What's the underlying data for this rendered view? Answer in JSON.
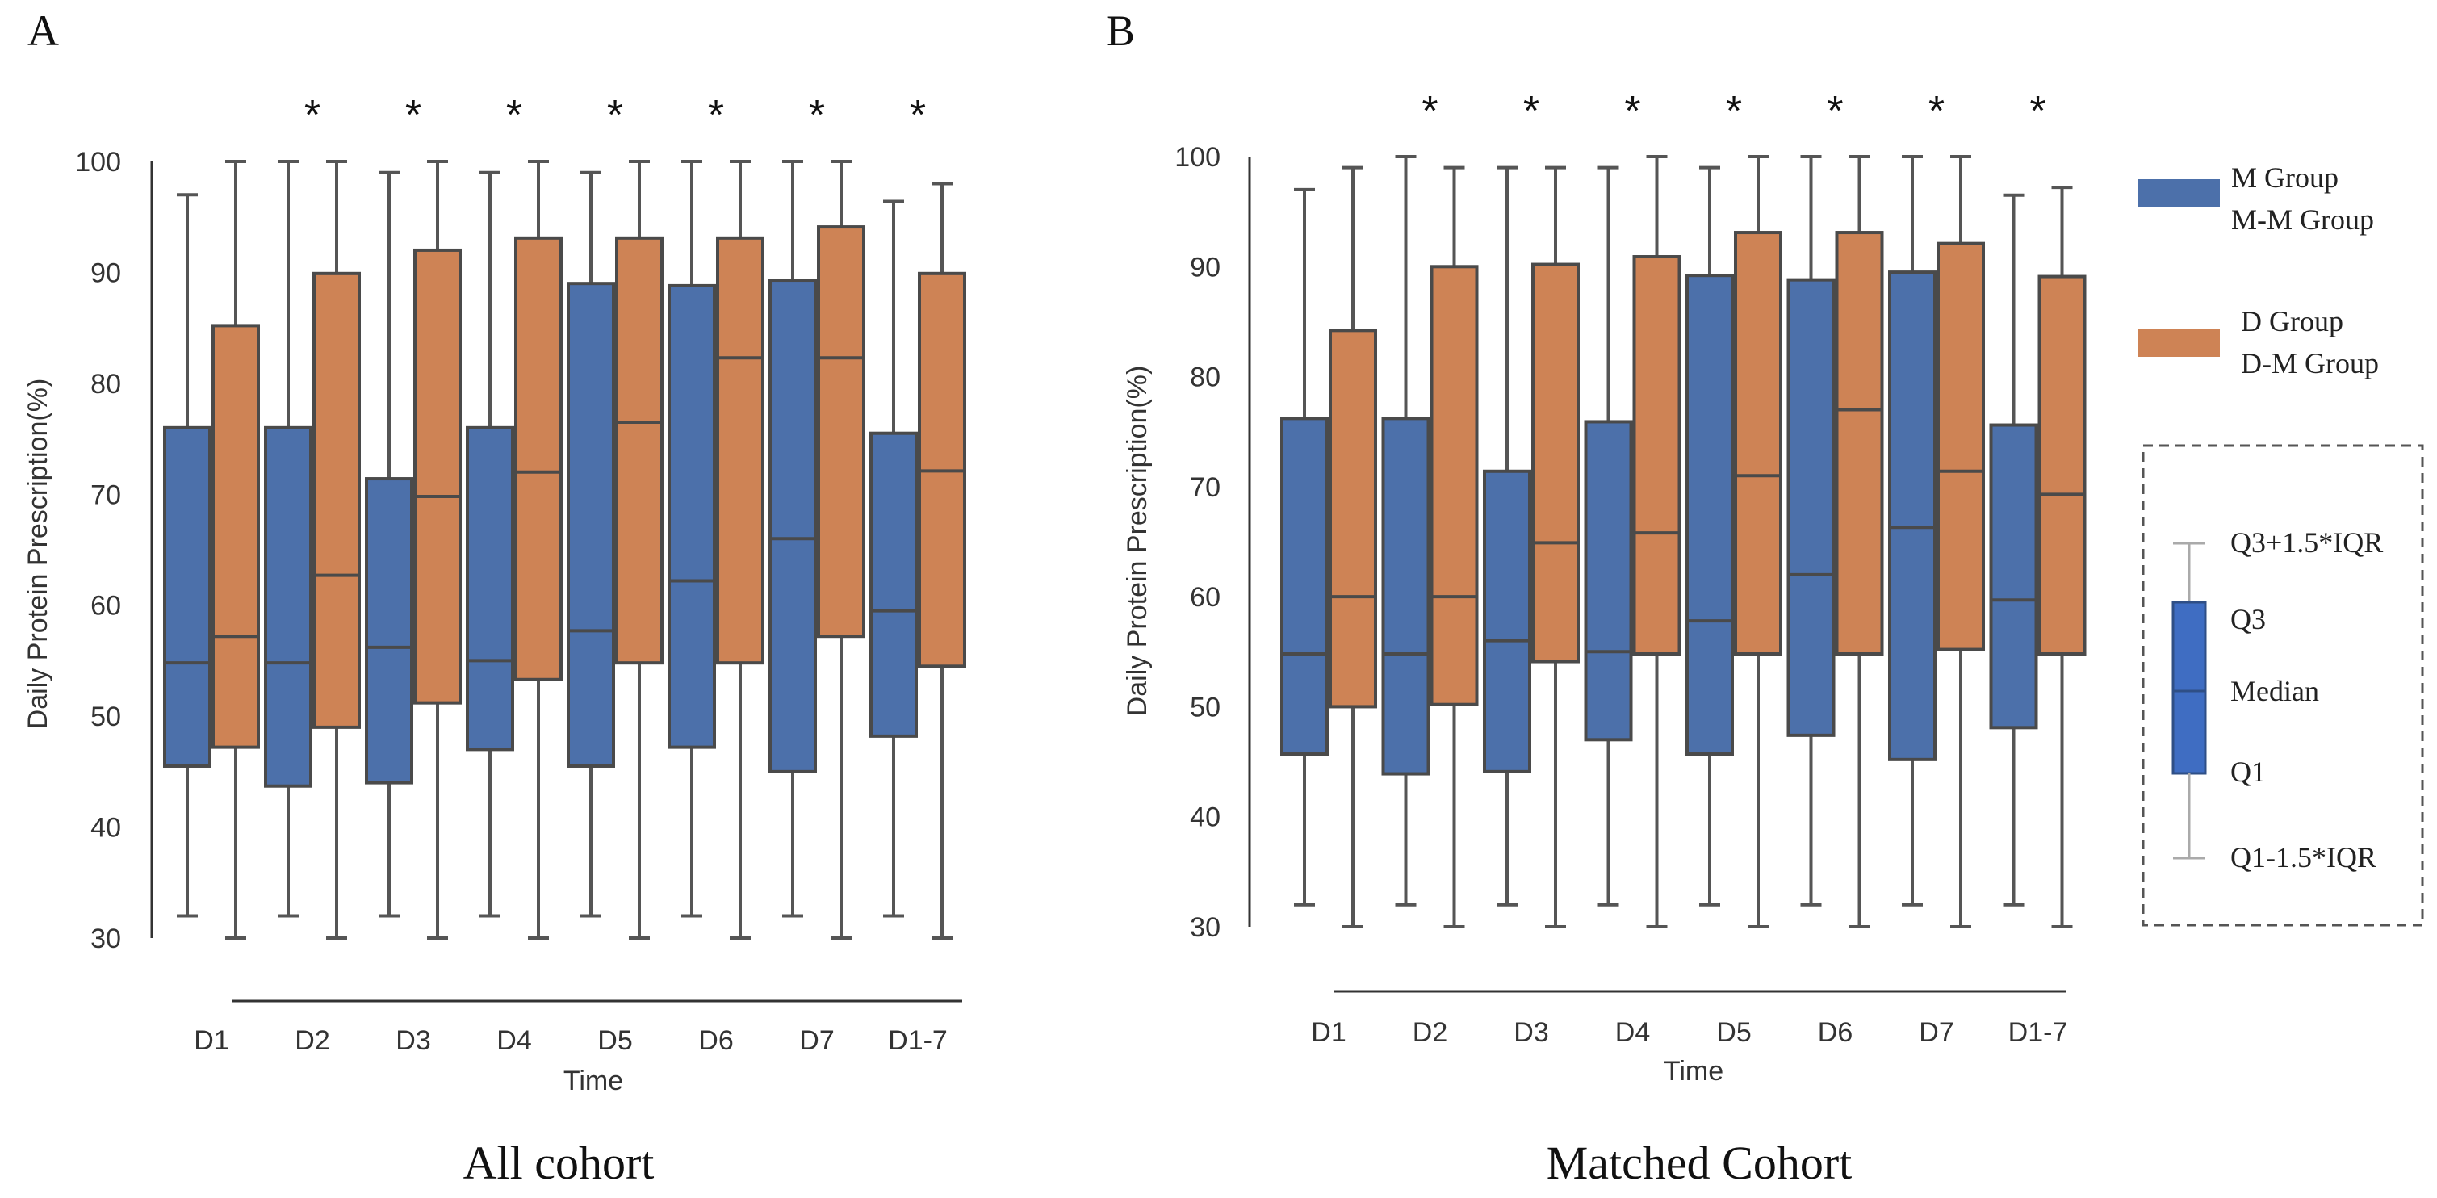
{
  "colors": {
    "m": "#4C70AA",
    "d": "#CE8355",
    "legend_box": "#3F6DC2"
  },
  "legend": {
    "m_labels": [
      "M Group",
      "M-M Group"
    ],
    "d_labels": [
      "D Group",
      "D-M Group"
    ],
    "key_labels": [
      "Q3+1.5*IQR",
      "Q3",
      "Median",
      "Q1",
      "Q1-1.5*IQR"
    ]
  },
  "chart_data": [
    {
      "panel": "A",
      "type": "box",
      "title": "All cohort",
      "xlabel": "Time",
      "ylabel": "Daily Protein Prescription(%)",
      "ylim": [
        30,
        100
      ],
      "yticks": [
        30,
        40,
        50,
        60,
        70,
        80,
        90,
        100
      ],
      "categories": [
        "D1",
        "D2",
        "D3",
        "D4",
        "D5",
        "D6",
        "D7",
        "D1-7"
      ],
      "significance": [
        "",
        "*",
        "*",
        "*",
        "*",
        "*",
        "*",
        "*"
      ],
      "series": [
        {
          "name": "M Group",
          "whisker_low": [
            32,
            32,
            32,
            32,
            32,
            32,
            32,
            32
          ],
          "q1": [
            45.5,
            43.7,
            44,
            47,
            45.5,
            47.2,
            45,
            48.2
          ],
          "median": [
            54.8,
            54.8,
            56.2,
            55,
            57.7,
            62.2,
            66,
            59.5
          ],
          "q3": [
            76,
            76,
            71.4,
            76,
            89,
            88.8,
            89.3,
            75.5
          ],
          "whisker_high": [
            97,
            100,
            99,
            99,
            99,
            100,
            100,
            96.4
          ]
        },
        {
          "name": "D Group",
          "whisker_low": [
            30,
            30,
            30,
            30,
            30,
            30,
            30,
            30
          ],
          "q1": [
            47.2,
            49,
            51.2,
            53.3,
            54.8,
            54.8,
            57.2,
            54.5
          ],
          "median": [
            57.2,
            62.7,
            69.8,
            72,
            76.5,
            82.3,
            82.3,
            72.1
          ],
          "q3": [
            85.2,
            89.9,
            92,
            93.1,
            93.1,
            93.1,
            94.1,
            89.9
          ],
          "whisker_high": [
            100,
            100,
            100,
            100,
            100,
            100,
            100,
            98
          ]
        }
      ]
    },
    {
      "panel": "B",
      "type": "box",
      "title": "Matched Cohort",
      "xlabel": "Time",
      "ylabel": "Daily Protein Prescription(%)",
      "ylim": [
        30,
        100
      ],
      "yticks": [
        30,
        40,
        50,
        60,
        70,
        80,
        90,
        100
      ],
      "categories": [
        "D1",
        "D2",
        "D3",
        "D4",
        "D5",
        "D6",
        "D7",
        "D1-7"
      ],
      "significance": [
        "",
        "*",
        "*",
        "*",
        "*",
        "*",
        "*",
        "*"
      ],
      "series": [
        {
          "name": "M-M Group",
          "whisker_low": [
            32,
            32,
            32,
            32,
            32,
            32,
            32,
            32
          ],
          "q1": [
            45.7,
            43.9,
            44.1,
            47,
            45.7,
            47.4,
            45.2,
            48.1
          ],
          "median": [
            54.8,
            54.8,
            56,
            55,
            57.8,
            62,
            66.3,
            59.7
          ],
          "q3": [
            76.2,
            76.2,
            71.4,
            75.9,
            89.2,
            88.8,
            89.5,
            75.6
          ],
          "whisker_high": [
            97,
            100,
            99,
            99,
            99,
            100,
            100,
            96.5
          ]
        },
        {
          "name": "D-M Group",
          "whisker_low": [
            30,
            30,
            30,
            30,
            30,
            30,
            30,
            30
          ],
          "q1": [
            50,
            50.2,
            54.1,
            54.8,
            54.8,
            54.8,
            55.2,
            54.8
          ],
          "median": [
            60,
            60,
            64.9,
            65.8,
            71,
            77,
            71.4,
            69.3
          ],
          "q3": [
            84.2,
            90,
            90.2,
            90.9,
            93.1,
            93.1,
            92.1,
            89.1
          ],
          "whisker_high": [
            99,
            99,
            99,
            100,
            100,
            100,
            100,
            97.2
          ]
        }
      ]
    }
  ]
}
